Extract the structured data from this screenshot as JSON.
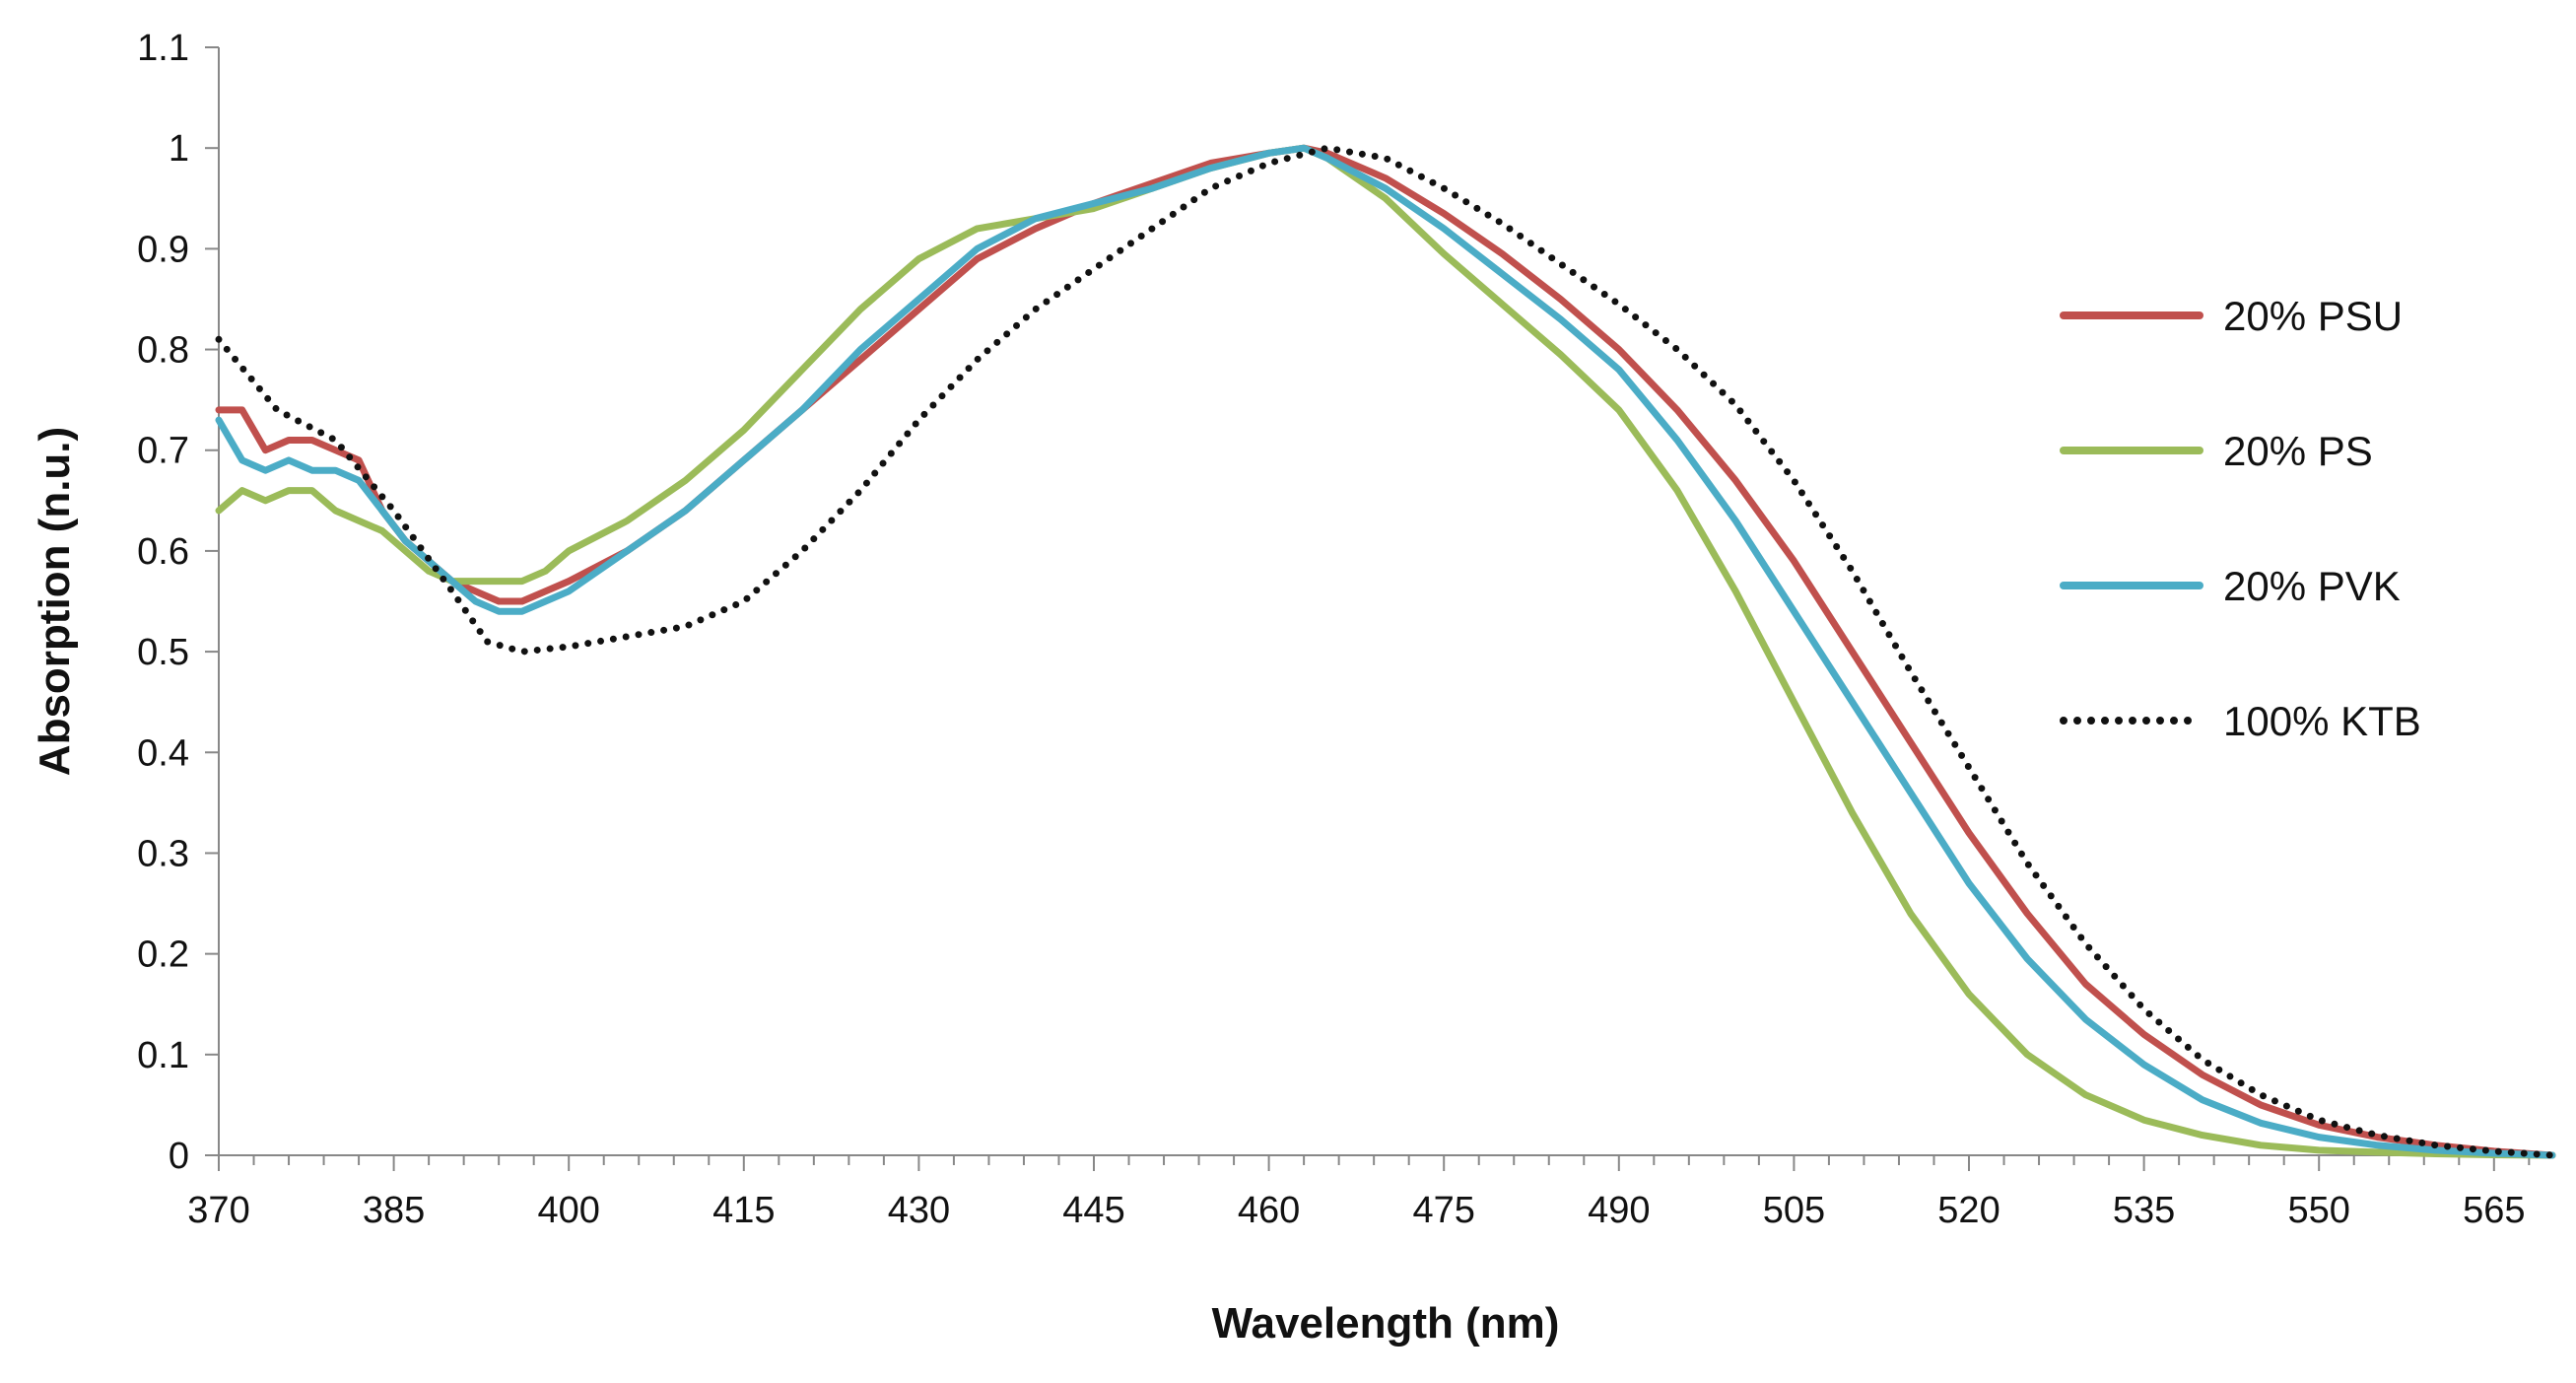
{
  "chart_data": {
    "type": "line",
    "title": "",
    "xlabel": "Wavelength (nm)",
    "ylabel": "Absorption (n.u.)",
    "xlim": [
      370,
      570
    ],
    "ylim": [
      0,
      1.1
    ],
    "xticks": [
      370,
      385,
      400,
      415,
      430,
      445,
      460,
      475,
      490,
      505,
      520,
      535,
      550,
      565
    ],
    "xtick_labels": [
      "370",
      "385",
      "400",
      "415",
      "430",
      "445",
      "460",
      "475",
      "490",
      "505",
      "520",
      "535",
      "550",
      "565"
    ],
    "yticks": [
      0,
      0.1,
      0.2,
      0.3,
      0.4,
      0.5,
      0.6,
      0.7,
      0.8,
      0.9,
      1,
      1.1
    ],
    "ytick_labels": [
      "0",
      "0.1",
      "0.2",
      "0.3",
      "0.4",
      "0.5",
      "0.6",
      "0.7",
      "0.8",
      "0.9",
      "1",
      "1.1"
    ],
    "grid": false,
    "legend_position": "right",
    "series": [
      {
        "name": "20% PSU",
        "color": "#c0504d",
        "style": "solid",
        "x": [
          370,
          372,
          374,
          376,
          378,
          380,
          382,
          384,
          386,
          388,
          390,
          392,
          394,
          396,
          398,
          400,
          405,
          410,
          415,
          420,
          425,
          430,
          435,
          440,
          445,
          450,
          455,
          460,
          463,
          465,
          470,
          475,
          480,
          485,
          490,
          495,
          500,
          505,
          510,
          515,
          520,
          525,
          530,
          535,
          540,
          545,
          550,
          555,
          560,
          565,
          570
        ],
        "y": [
          0.74,
          0.74,
          0.7,
          0.71,
          0.71,
          0.7,
          0.69,
          0.64,
          0.61,
          0.59,
          0.57,
          0.56,
          0.55,
          0.55,
          0.56,
          0.57,
          0.6,
          0.64,
          0.69,
          0.74,
          0.79,
          0.84,
          0.89,
          0.92,
          0.945,
          0.965,
          0.985,
          0.995,
          1.0,
          0.995,
          0.97,
          0.935,
          0.895,
          0.85,
          0.8,
          0.74,
          0.67,
          0.59,
          0.5,
          0.41,
          0.32,
          0.24,
          0.17,
          0.12,
          0.08,
          0.05,
          0.03,
          0.018,
          0.01,
          0.004,
          0.0
        ]
      },
      {
        "name": "20% PS",
        "color": "#9bbb59",
        "style": "solid",
        "x": [
          370,
          372,
          374,
          376,
          378,
          380,
          382,
          384,
          386,
          388,
          390,
          392,
          394,
          396,
          398,
          400,
          405,
          410,
          415,
          420,
          425,
          430,
          435,
          440,
          445,
          450,
          455,
          460,
          463,
          465,
          470,
          475,
          480,
          485,
          490,
          495,
          500,
          505,
          510,
          515,
          520,
          525,
          530,
          535,
          540,
          545,
          550,
          555,
          560,
          565,
          570
        ],
        "y": [
          0.64,
          0.66,
          0.65,
          0.66,
          0.66,
          0.64,
          0.63,
          0.62,
          0.6,
          0.58,
          0.57,
          0.57,
          0.57,
          0.57,
          0.58,
          0.6,
          0.63,
          0.67,
          0.72,
          0.78,
          0.84,
          0.89,
          0.92,
          0.93,
          0.94,
          0.96,
          0.98,
          0.995,
          1.0,
          0.99,
          0.95,
          0.895,
          0.845,
          0.795,
          0.74,
          0.66,
          0.56,
          0.45,
          0.34,
          0.24,
          0.16,
          0.1,
          0.06,
          0.035,
          0.02,
          0.01,
          0.005,
          0.003,
          0.0015,
          0.0005,
          0.0
        ]
      },
      {
        "name": "20% PVK",
        "color": "#4bacc6",
        "style": "solid",
        "x": [
          370,
          372,
          374,
          376,
          378,
          380,
          382,
          384,
          386,
          388,
          390,
          392,
          394,
          396,
          398,
          400,
          405,
          410,
          415,
          420,
          425,
          430,
          435,
          440,
          445,
          450,
          455,
          460,
          463,
          465,
          470,
          475,
          480,
          485,
          490,
          495,
          500,
          505,
          510,
          515,
          520,
          525,
          530,
          535,
          540,
          545,
          550,
          555,
          560,
          565,
          570
        ],
        "y": [
          0.73,
          0.69,
          0.68,
          0.69,
          0.68,
          0.68,
          0.67,
          0.64,
          0.61,
          0.59,
          0.57,
          0.55,
          0.54,
          0.54,
          0.55,
          0.56,
          0.6,
          0.64,
          0.69,
          0.74,
          0.8,
          0.85,
          0.9,
          0.93,
          0.945,
          0.96,
          0.98,
          0.995,
          1.0,
          0.99,
          0.96,
          0.92,
          0.875,
          0.83,
          0.78,
          0.71,
          0.63,
          0.54,
          0.45,
          0.36,
          0.27,
          0.195,
          0.135,
          0.09,
          0.055,
          0.032,
          0.018,
          0.01,
          0.005,
          0.002,
          0.0
        ]
      },
      {
        "name": "100% KTB",
        "color": "#111111",
        "style": "dotted",
        "x": [
          370,
          375,
          380,
          385,
          390,
          393,
          396,
          400,
          405,
          410,
          415,
          420,
          425,
          430,
          435,
          440,
          445,
          450,
          455,
          460,
          465,
          470,
          475,
          480,
          485,
          490,
          495,
          500,
          505,
          510,
          515,
          520,
          525,
          530,
          535,
          540,
          545,
          550,
          555,
          560,
          565,
          570
        ],
        "y": [
          0.81,
          0.74,
          0.71,
          0.64,
          0.56,
          0.51,
          0.5,
          0.505,
          0.515,
          0.525,
          0.55,
          0.6,
          0.66,
          0.73,
          0.79,
          0.84,
          0.88,
          0.92,
          0.96,
          0.985,
          1.0,
          0.99,
          0.96,
          0.925,
          0.885,
          0.845,
          0.8,
          0.745,
          0.67,
          0.58,
          0.48,
          0.385,
          0.29,
          0.21,
          0.145,
          0.095,
          0.06,
          0.035,
          0.02,
          0.01,
          0.004,
          0.0
        ]
      }
    ]
  }
}
